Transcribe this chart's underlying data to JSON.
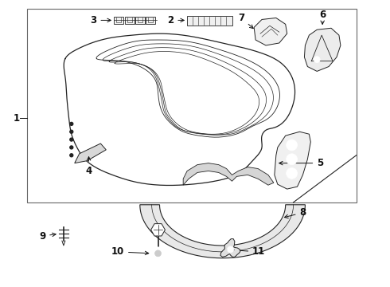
{
  "bg_color": "#ffffff",
  "line_color": "#222222",
  "label_color": "#111111",
  "border_color": "#888888",
  "fig_width": 4.9,
  "fig_height": 3.6,
  "dpi": 100
}
